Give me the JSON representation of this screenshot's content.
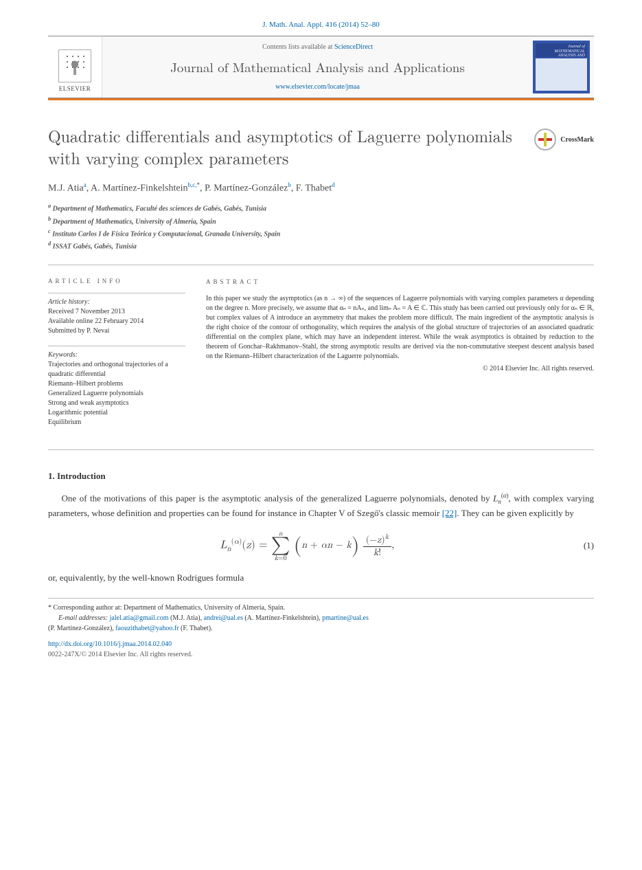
{
  "topref": "J. Math. Anal. Appl. 416 (2014) 52–80",
  "header": {
    "contents_prefix": "Contents lists available at ",
    "contents_link": "ScienceDirect",
    "journal_title": "Journal of Mathematical Analysis and Applications",
    "locate_link": "www.elsevier.com/locate/jmaa",
    "elsevier_label": "ELSEVIER",
    "cover_top": "Journal of MATHEMATICAL ANALYSIS AND APPLICATIONS"
  },
  "crossmark_label": "CrossMark",
  "title": "Quadratic differentials and asymptotics of Laguerre polynomials with varying complex parameters",
  "authors": {
    "a1": "M.J. Atia",
    "a1_sup": "a",
    "a2": "A. Martínez-Finkelshtein",
    "a2_sup": "b,c,",
    "a2_star": "*",
    "a3": "P. Martínez-González",
    "a3_sup": "b",
    "a4": "F. Thabet",
    "a4_sup": "d"
  },
  "affiliations": {
    "a": "Department of Mathematics, Faculté des sciences de Gabés, Gabés, Tunisia",
    "b": "Department of Mathematics, University of Almería, Spain",
    "c": "Instituto Carlos I de Física Teórica y Computacional, Granada University, Spain",
    "d": "ISSAT Gabés, Gabés, Tunisia"
  },
  "article_info": {
    "head": "article info",
    "history_label": "Article history:",
    "received": "Received 7 November 2013",
    "online": "Available online 22 February 2014",
    "submitted": "Submitted by P. Nevai",
    "keywords_label": "Keywords:",
    "keywords": [
      "Trajectories and orthogonal trajectories of a quadratic differential",
      "Riemann–Hilbert problems",
      "Generalized Laguerre polynomials",
      "Strong and weak asymptotics",
      "Logarithmic potential",
      "Equilibrium"
    ]
  },
  "abstract": {
    "head": "abstract",
    "text": "In this paper we study the asymptotics (as n → ∞) of the sequences of Laguerre polynomials with varying complex parameters α depending on the degree n. More precisely, we assume that αₙ = nAₙ, and limₙ Aₙ = A ∈ ℂ. This study has been carried out previously only for αₙ ∈ ℝ, but complex values of A introduce an asymmetry that makes the problem more difficult. The main ingredient of the asymptotic analysis is the right choice of the contour of orthogonality, which requires the analysis of the global structure of trajectories of an associated quadratic differential on the complex plane, which may have an independent interest. While the weak asymptotics is obtained by reduction to the theorem of Gonchar–Rakhmanov–Stahl, the strong asymptotic results are derived via the non-commutative steepest descent analysis based on the Riemann–Hilbert characterization of the Laguerre polynomials.",
    "copyright": "© 2014 Elsevier Inc. All rights reserved."
  },
  "section1": {
    "head": "1. Introduction",
    "p1_a": "One of the motivations of this paper is the asymptotic analysis of the generalized Laguerre polynomials, denoted by ",
    "p1_b": ", with complex varying parameters, whose definition and properties can be found for instance in Chapter V of Szegő's classic memoir ",
    "p1_ref": "[22]",
    "p1_c": ". They can be given explicitly by",
    "eq1_num": "(1)",
    "p2": "or, equivalently, by the well-known Rodrigues formula"
  },
  "footnotes": {
    "corresponding": "Corresponding author at: Department of Mathematics, University of Almería, Spain.",
    "email_label": "E-mail addresses:",
    "e1": "jalel.atia@gmail.com",
    "n1": "(M.J. Atia),",
    "e2": "andrei@ual.es",
    "n2": "(A. Martínez-Finkelshtein),",
    "e3": "pmartine@ual.es",
    "n3": "(P. Martínez-González),",
    "e4": "faouzithabet@yahoo.fr",
    "n4": "(F. Thabet).",
    "doi": "http://dx.doi.org/10.1016/j.jmaa.2014.02.040",
    "issn": "0022-247X/© 2014 Elsevier Inc. All rights reserved."
  },
  "colors": {
    "link": "#0066aa",
    "orange": "#e87722",
    "text": "#333333",
    "heading": "#4a4a4a",
    "rule": "#bbbbbb"
  }
}
